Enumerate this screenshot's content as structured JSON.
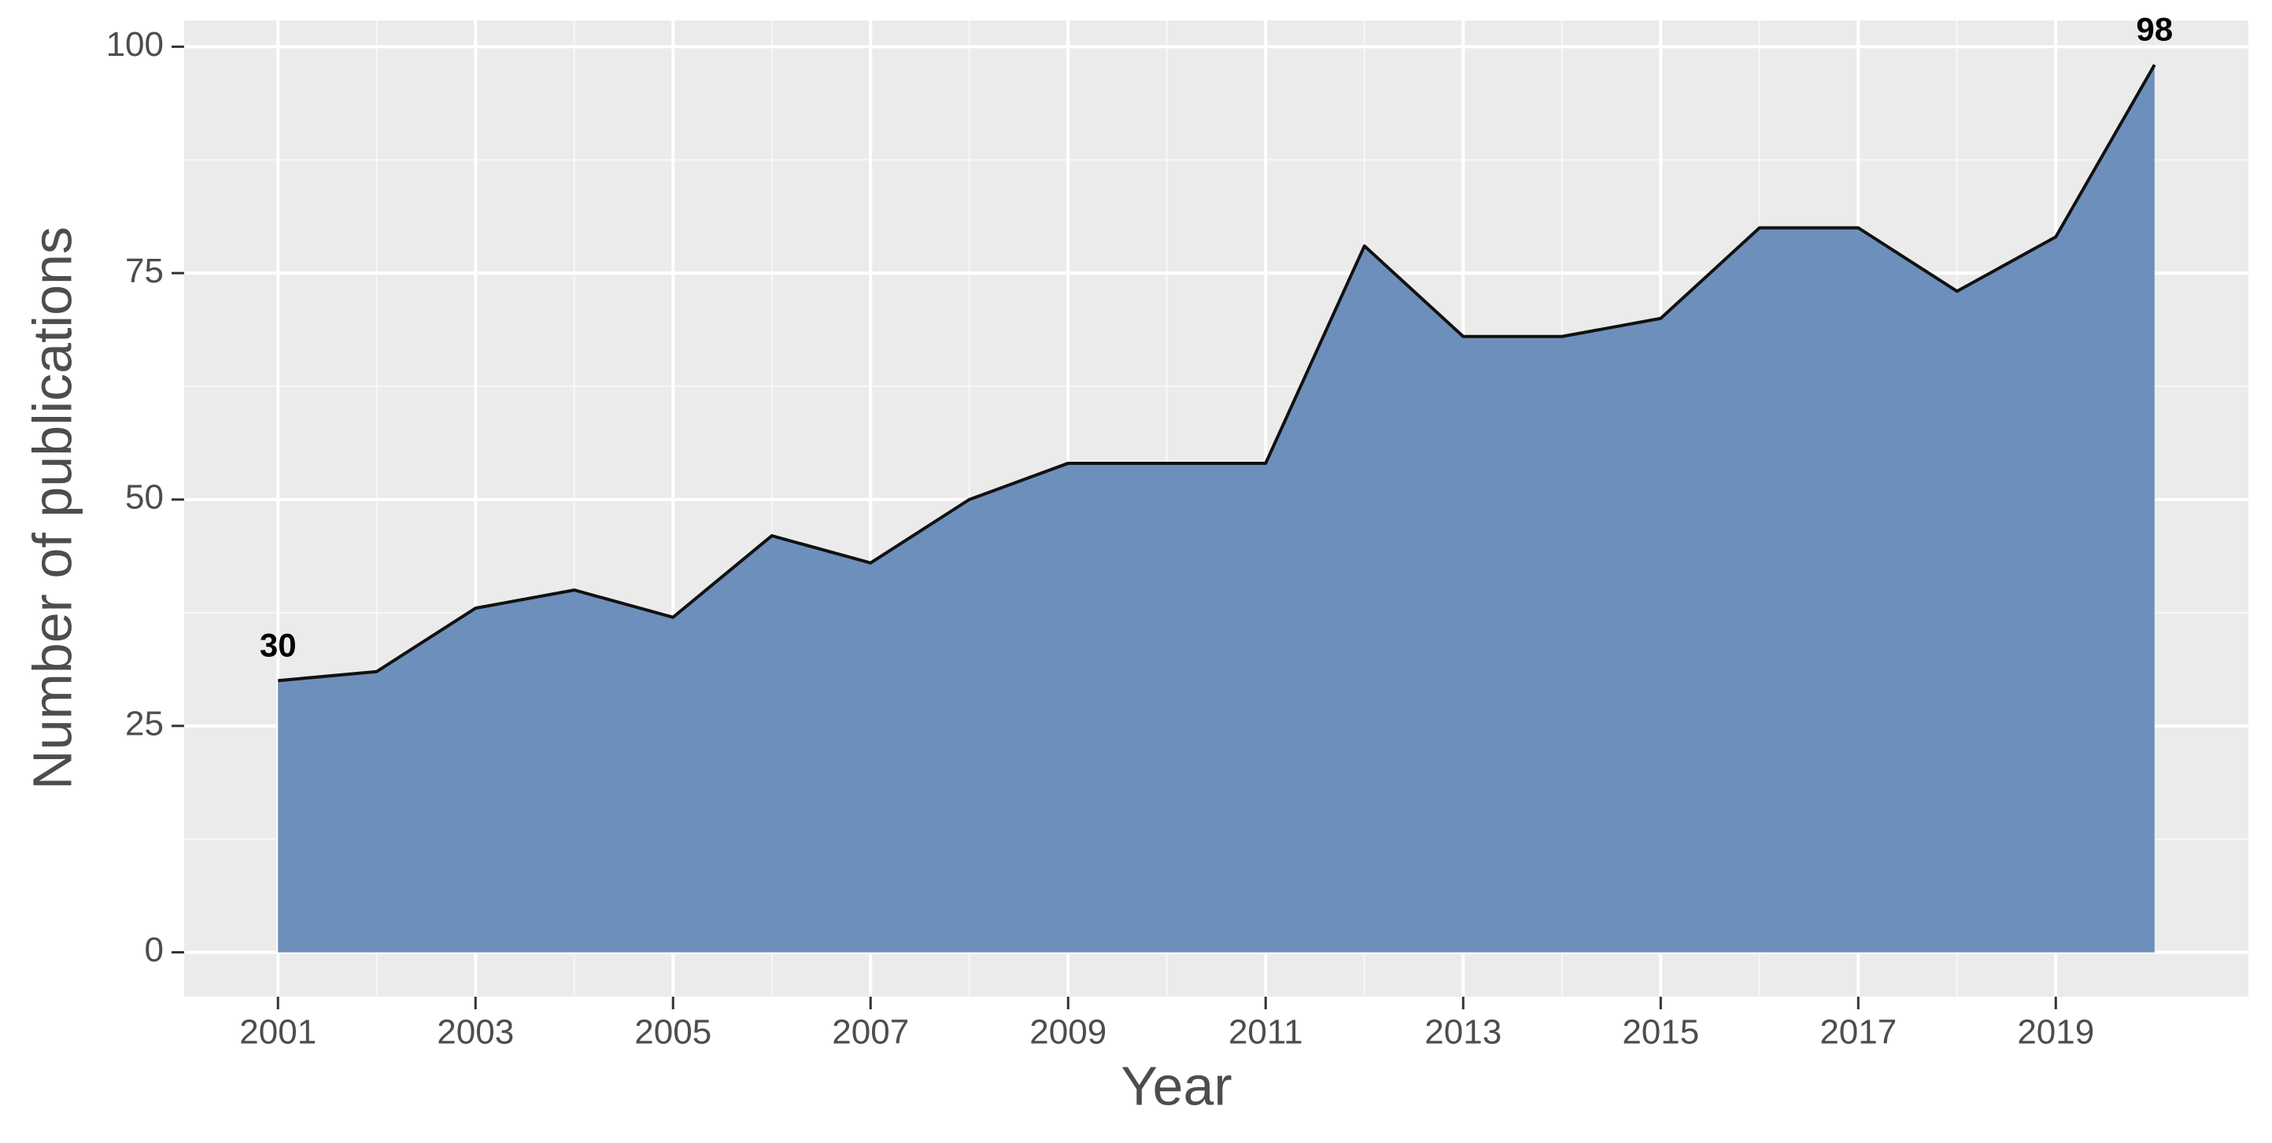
{
  "chart_data": {
    "type": "area",
    "x_label": "Year",
    "y_label": "Number of publications",
    "x": [
      2001,
      2002,
      2003,
      2004,
      2005,
      2006,
      2007,
      2008,
      2009,
      2010,
      2011,
      2012,
      2013,
      2014,
      2015,
      2016,
      2017,
      2018,
      2019,
      2020
    ],
    "values": [
      30,
      31,
      38,
      40,
      37,
      46,
      43,
      50,
      54,
      54,
      54,
      78,
      68,
      68,
      70,
      80,
      80,
      73,
      79,
      98
    ],
    "color": "#6d8fbb",
    "line_color": "#111111",
    "xlim": [
      2000.05,
      2020.95
    ],
    "xticks": [
      2001,
      2003,
      2005,
      2007,
      2009,
      2011,
      2013,
      2015,
      2017,
      2019
    ],
    "ylim": [
      -4.9,
      102.9
    ],
    "yticks": [
      0,
      25,
      50,
      75,
      100
    ],
    "grid": true
  }
}
